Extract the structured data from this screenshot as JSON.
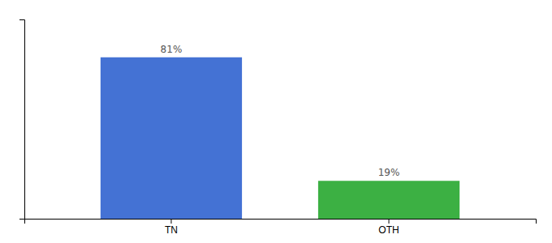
{
  "chart_data": {
    "type": "bar",
    "categories": [
      "TN",
      "OTH"
    ],
    "values": [
      81,
      19
    ],
    "value_labels": [
      "81%",
      "19%"
    ],
    "colors": [
      "#4472d4",
      "#3cb043"
    ],
    "ylim": [
      0,
      100
    ],
    "data_labels": true,
    "tick_labels": "x"
  }
}
